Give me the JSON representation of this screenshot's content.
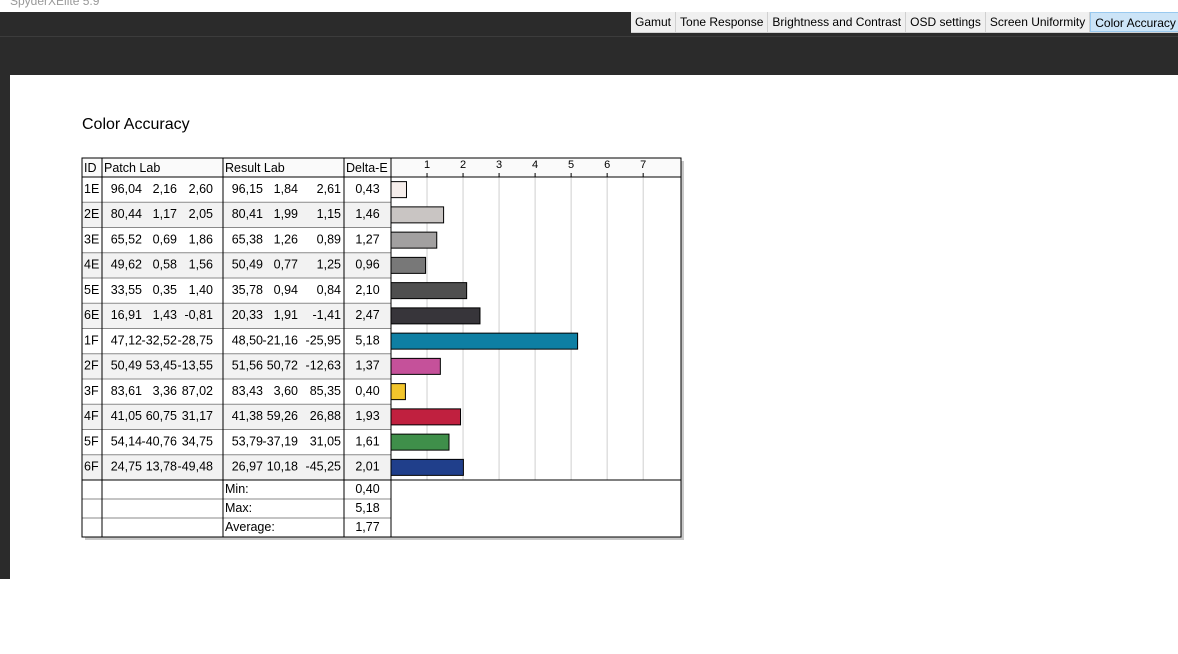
{
  "app": {
    "title": "SpyderXElite 5.9"
  },
  "tabs": [
    "Gamut",
    "Tone Response",
    "Brightness and Contrast",
    "OSD settings",
    "Screen Uniformity",
    "Color Accuracy"
  ],
  "active_tab": 5,
  "heading": "Color Accuracy",
  "table": {
    "headers": [
      "ID",
      "Patch Lab",
      "Result Lab",
      "Delta-E"
    ],
    "rows": [
      {
        "patch": [
          "96,04",
          "2,16",
          "2,60"
        ],
        "result": [
          "96,15",
          "1,84",
          "2,61"
        ]
      },
      {
        "patch": [
          "80,44",
          "1,17",
          "2,05"
        ],
        "result": [
          "80,41",
          "1,99",
          "1,15"
        ]
      },
      {
        "patch": [
          "65,52",
          "0,69",
          "1,86"
        ],
        "result": [
          "65,38",
          "1,26",
          "0,89"
        ]
      },
      {
        "patch": [
          "49,62",
          "0,58",
          "1,56"
        ],
        "result": [
          "50,49",
          "0,77",
          "1,25"
        ]
      },
      {
        "patch": [
          "33,55",
          "0,35",
          "1,40"
        ],
        "result": [
          "35,78",
          "0,94",
          "0,84"
        ]
      },
      {
        "patch": [
          "16,91",
          "1,43",
          "-0,81"
        ],
        "result": [
          "20,33",
          "1,91",
          "-1,41"
        ]
      },
      {
        "patch": [
          "47,12",
          "-32,52",
          "-28,75"
        ],
        "result": [
          "48,50",
          "-21,16",
          "-25,95"
        ]
      },
      {
        "patch": [
          "50,49",
          "53,45",
          "-13,55"
        ],
        "result": [
          "51,56",
          "50,72",
          "-12,63"
        ]
      },
      {
        "patch": [
          "83,61",
          "3,36",
          "87,02"
        ],
        "result": [
          "83,43",
          "3,60",
          "85,35"
        ]
      },
      {
        "patch": [
          "41,05",
          "60,75",
          "31,17"
        ],
        "result": [
          "41,38",
          "59,26",
          "26,88"
        ]
      },
      {
        "patch": [
          "54,14",
          "-40,76",
          "34,75"
        ],
        "result": [
          "53,79",
          "-37,19",
          "31,05"
        ]
      },
      {
        "patch": [
          "24,75",
          "13,78",
          "-49,48"
        ],
        "result": [
          "26,97",
          "10,18",
          "-45,25"
        ]
      }
    ],
    "summary": [
      {
        "label": "Min:",
        "value": "0,40"
      },
      {
        "label": "Max:",
        "value": "5,18"
      },
      {
        "label": "Average:",
        "value": "1,77"
      }
    ]
  },
  "chart_data": {
    "type": "bar",
    "orientation": "horizontal",
    "categories": [
      "1E",
      "2E",
      "3E",
      "4E",
      "5E",
      "6E",
      "1F",
      "2F",
      "3F",
      "4F",
      "5F",
      "6F"
    ],
    "values": [
      0.43,
      1.46,
      1.27,
      0.96,
      2.1,
      2.47,
      5.18,
      1.37,
      0.4,
      1.93,
      1.61,
      2.01
    ],
    "value_labels": [
      "0,43",
      "1,46",
      "1,27",
      "0,96",
      "2,10",
      "2,47",
      "5,18",
      "1,37",
      "0,40",
      "1,93",
      "1,61",
      "2,01"
    ],
    "colors": [
      "#f6eeeb",
      "#c9c5c3",
      "#a2a0a0",
      "#787878",
      "#4f4f4f",
      "#37353a",
      "#0e7fa3",
      "#c5519a",
      "#f2c52b",
      "#c0203f",
      "#3f8f4a",
      "#203f8b"
    ],
    "xlim": [
      0,
      8.05
    ],
    "xticks": [
      1,
      2,
      3,
      4,
      5,
      6,
      7
    ],
    "grid": true
  }
}
